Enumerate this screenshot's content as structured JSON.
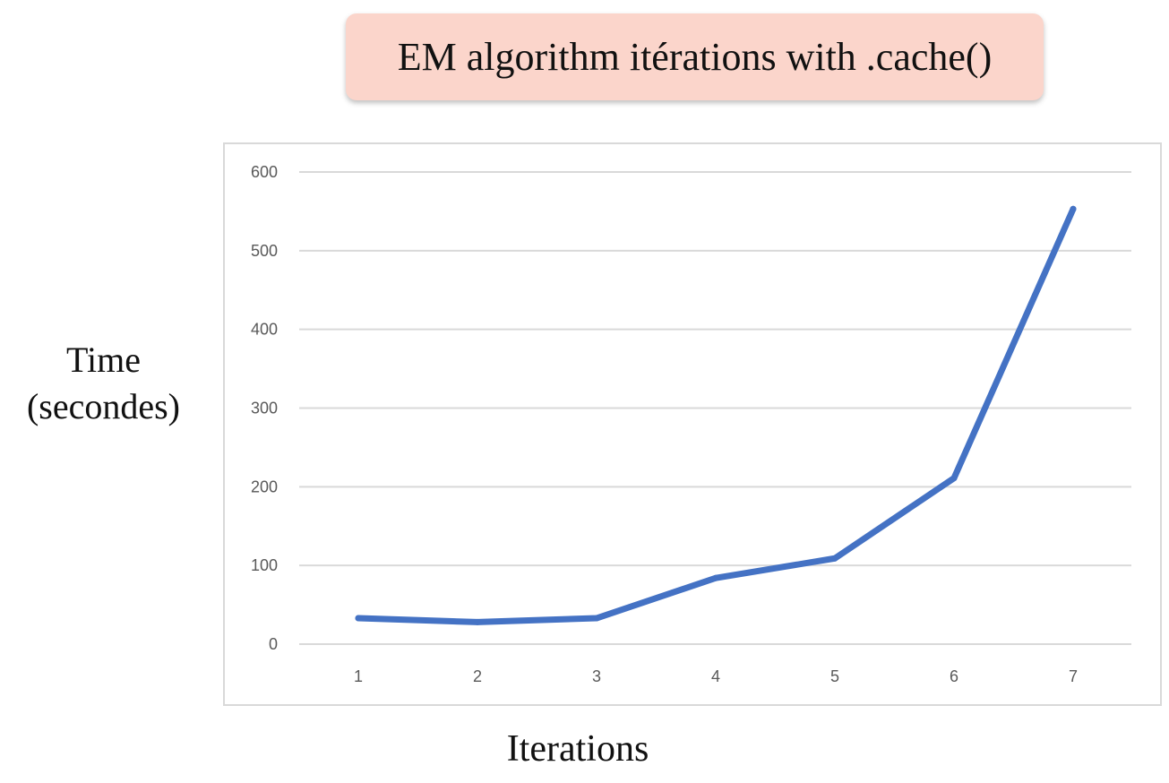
{
  "chart_data": {
    "type": "line",
    "title": "EM algorithm itérations with .cache()",
    "xlabel": "Iterations",
    "ylabel_line1": "Time",
    "ylabel_line2": "(secondes)",
    "x": [
      "1",
      "2",
      "3",
      "4",
      "5",
      "6",
      "7"
    ],
    "series": [
      {
        "values": [
          33,
          28,
          33,
          84,
          109,
          211,
          553
        ]
      }
    ],
    "ylim": [
      0,
      600
    ],
    "yticks": [
      "0",
      "100",
      "200",
      "300",
      "400",
      "500",
      "600"
    ],
    "grid": true,
    "line_color": "#4472c4"
  }
}
